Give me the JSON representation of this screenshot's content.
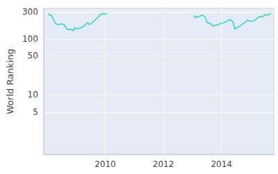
{
  "chart_data": {
    "type": "line",
    "y_label": "World Ranking",
    "log": "y",
    "grid": true,
    "color": "#2ad4cc",
    "x": [
      2008.05,
      2008.1,
      2008.15,
      2008.2,
      2008.3,
      2008.4,
      2008.5,
      2008.6,
      2008.7,
      2008.8,
      2008.9,
      2008.95,
      2009.0,
      2009.1,
      2009.2,
      2009.3,
      2009.4,
      2009.45,
      2009.5,
      2009.6,
      2009.7,
      2009.8,
      2009.9,
      2010.0,
      2010.05,
      2011.5,
      2013.05,
      2013.1,
      2013.2,
      2013.35,
      2013.45,
      2013.5,
      2013.6,
      2013.7,
      2013.8,
      2013.9,
      2014.0,
      2014.1,
      2014.2,
      2014.3,
      2014.35,
      2014.4,
      2014.45,
      2014.5,
      2014.6,
      2014.7,
      2014.8,
      2014.9,
      2015.0,
      2015.1,
      2015.2,
      2015.3,
      2015.4,
      2015.5,
      2015.6,
      2015.7
    ],
    "values": [
      280,
      260,
      265,
      230,
      185,
      180,
      185,
      175,
      145,
      150,
      140,
      160,
      150,
      155,
      160,
      175,
      195,
      180,
      185,
      205,
      230,
      260,
      280,
      275,
      285,
      null,
      260,
      240,
      250,
      265,
      240,
      195,
      190,
      170,
      175,
      180,
      190,
      195,
      210,
      220,
      210,
      200,
      150,
      155,
      165,
      180,
      195,
      215,
      205,
      210,
      225,
      250,
      245,
      270,
      265,
      285
    ],
    "xlim": [
      2007.88,
      2015.8
    ],
    "xticks": [
      2010,
      2012,
      2014
    ],
    "ylim": [
      0.87,
      350
    ],
    "yticks": [
      5,
      10,
      50,
      100,
      300
    ]
  }
}
